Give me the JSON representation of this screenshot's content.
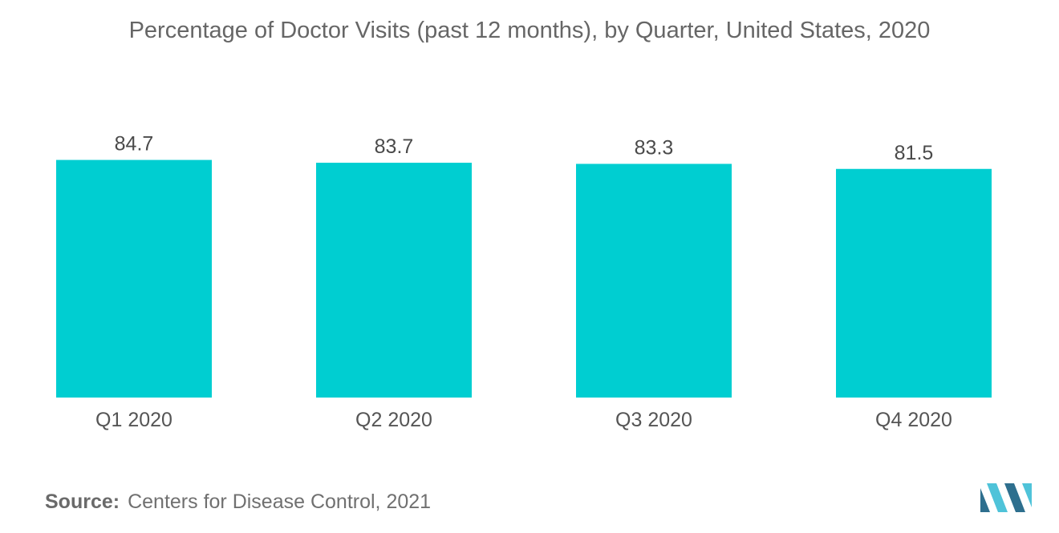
{
  "chart_data": {
    "type": "bar",
    "title": "Percentage of Doctor Visits (past 12 months), by Quarter, United States, 2020",
    "categories": [
      "Q1 2020",
      "Q2 2020",
      "Q3 2020",
      "Q4 2020"
    ],
    "values": [
      84.7,
      83.7,
      83.3,
      81.5
    ],
    "value_labels": [
      "84.7",
      "83.7",
      "83.3",
      "81.5"
    ],
    "xlabel": "",
    "ylabel": "",
    "ylim": [
      0,
      100
    ],
    "grid": false,
    "legend": "none",
    "bar_color": "#00CED1"
  },
  "source": {
    "label": "Source:",
    "text": "Centers for Disease Control, 2021"
  },
  "colors": {
    "logo_dark": "#2E6F8E",
    "logo_light": "#4FC3D9"
  }
}
